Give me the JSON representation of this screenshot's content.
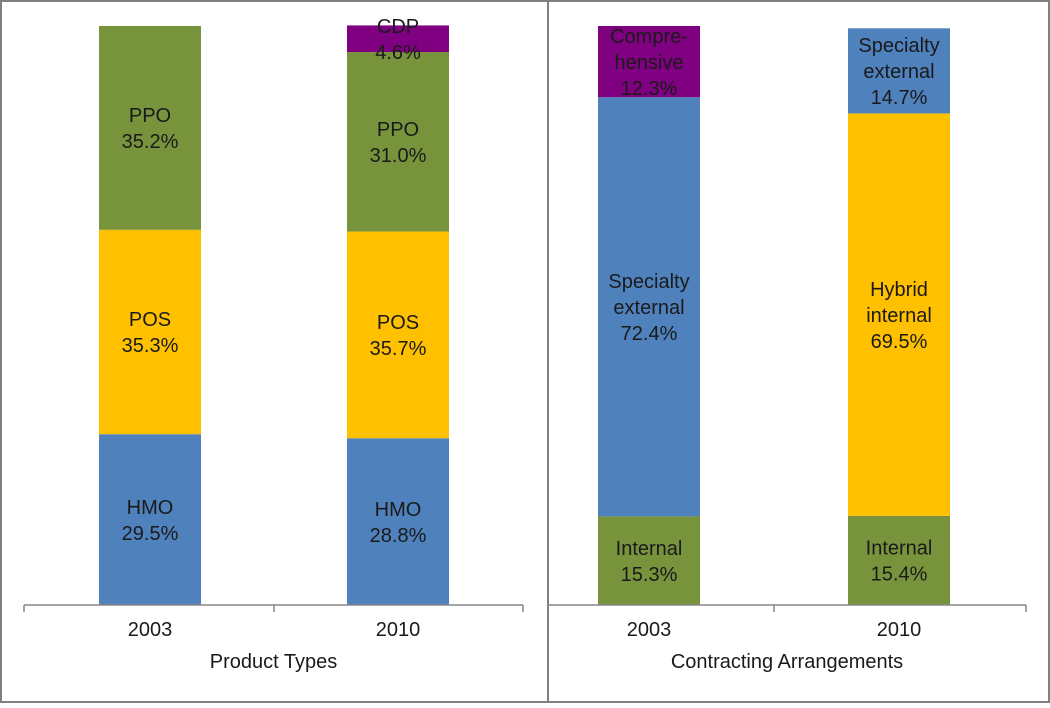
{
  "colors": {
    "HMO": "#4F81BD",
    "POS": "#FFC000",
    "PPO": "#77933C",
    "CDP": "#7F0080",
    "Internal": "#77933C",
    "Specialty external": "#4F81BD",
    "Hybrid internal": "#FFC000",
    "Comprehensive": "#7F0080"
  },
  "chart_data": [
    {
      "type": "bar",
      "stacked": true,
      "xlabel": "Product Types",
      "ylabel": "",
      "ylim": [
        0,
        100
      ],
      "categories": [
        "2003",
        "2010"
      ],
      "bars": [
        {
          "category": "2003",
          "segments": [
            {
              "series": "HMO",
              "lines": [
                "HMO",
                "29.5%"
              ],
              "value": 29.5
            },
            {
              "series": "POS",
              "lines": [
                "POS",
                "35.3%"
              ],
              "value": 35.3
            },
            {
              "series": "PPO",
              "lines": [
                "PPO",
                "35.2%"
              ],
              "value": 35.2
            }
          ]
        },
        {
          "category": "2010",
          "segments": [
            {
              "series": "HMO",
              "lines": [
                "HMO",
                "28.8%"
              ],
              "value": 28.8
            },
            {
              "series": "POS",
              "lines": [
                "POS",
                "35.7%"
              ],
              "value": 35.7
            },
            {
              "series": "PPO",
              "lines": [
                "PPO",
                "31.0%"
              ],
              "value": 31.0
            },
            {
              "series": "CDP",
              "lines": [
                "CDP",
                "4.6%"
              ],
              "value": 4.6
            }
          ]
        }
      ]
    },
    {
      "type": "bar",
      "stacked": true,
      "xlabel": "Contracting Arrangements",
      "ylabel": "",
      "ylim": [
        0,
        100
      ],
      "categories": [
        "2003",
        "2010"
      ],
      "bars": [
        {
          "category": "2003",
          "segments": [
            {
              "series": "Internal",
              "lines": [
                "Internal",
                "15.3%"
              ],
              "value": 15.3
            },
            {
              "series": "Specialty external",
              "lines": [
                "Specialty",
                "external",
                "72.4%"
              ],
              "value": 72.4
            },
            {
              "series": "Comprehensive",
              "lines": [
                "Compre-",
                "hensive",
                "12.3%"
              ],
              "value": 12.3
            }
          ]
        },
        {
          "category": "2010",
          "segments": [
            {
              "series": "Internal",
              "lines": [
                "Internal",
                "15.4%"
              ],
              "value": 15.4
            },
            {
              "series": "Hybrid internal",
              "lines": [
                "Hybrid",
                "internal",
                "69.5%"
              ],
              "value": 69.5
            },
            {
              "series": "Specialty external",
              "lines": [
                "Specialty",
                "external",
                "14.7%"
              ],
              "value": 14.7
            }
          ]
        }
      ]
    }
  ]
}
